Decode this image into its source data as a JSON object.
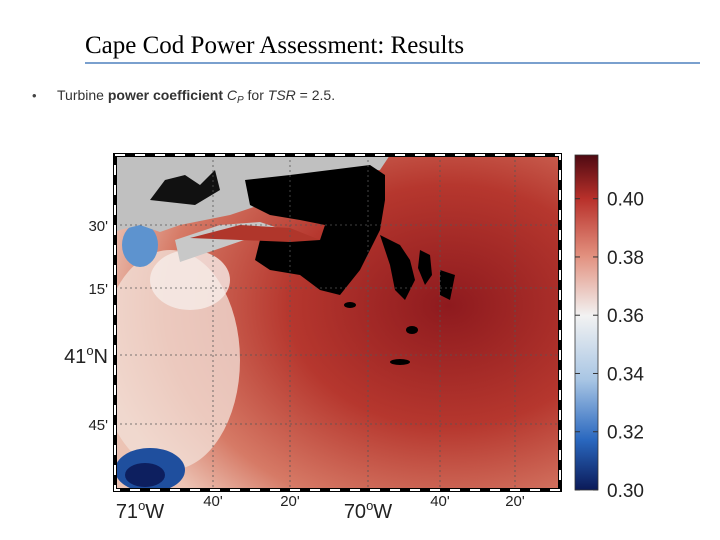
{
  "header": {
    "title": "Cape Cod Power Assessment: Results"
  },
  "bullet": {
    "marker": "•",
    "parts": [
      "Turbine ",
      "power coefficient",
      " C",
      "P",
      " for ",
      "TSR",
      " = 2.5."
    ]
  },
  "map": {
    "y_labels": [
      {
        "main": "30'"
      },
      {
        "main": "15'"
      },
      {
        "main": "41",
        "sup": "o",
        "suffix": "N"
      },
      {
        "main": "45'"
      }
    ],
    "x_labels": [
      {
        "main": "71",
        "sup": "o",
        "suffix": "W"
      },
      {
        "main": "40'"
      },
      {
        "main": "20'"
      },
      {
        "main": "70",
        "sup": "o",
        "suffix": "W"
      },
      {
        "main": "40'"
      },
      {
        "main": "20'"
      }
    ]
  },
  "colorbar": {
    "lim": [
      0.3,
      0.415
    ],
    "ticks": [
      {
        "value": 0.3,
        "label": "0.30"
      },
      {
        "value": 0.32,
        "label": "0.32"
      },
      {
        "value": 0.34,
        "label": "0.34"
      },
      {
        "value": 0.36,
        "label": "0.36"
      },
      {
        "value": 0.38,
        "label": "0.38"
      },
      {
        "value": 0.4,
        "label": "0.40"
      }
    ]
  }
}
